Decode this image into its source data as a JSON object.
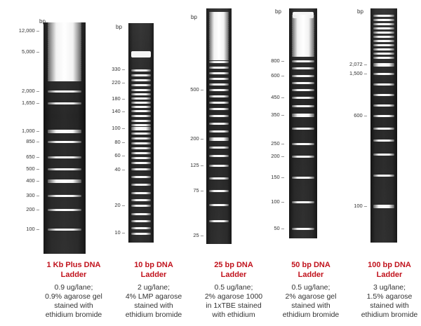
{
  "ladders": [
    {
      "bp_label": "bp",
      "title_lines": [
        "1 Kb Plus DNA",
        "Ladder"
      ],
      "desc_lines": [
        "0.9 ug/lane;",
        "0.9% agarose gel",
        "stained with",
        "ethidium bromide"
      ],
      "ticks": [
        "12,000",
        "5,000",
        "2,000",
        "1,650",
        "1,000",
        "850",
        "650",
        "500",
        "400",
        "300",
        "200",
        "100"
      ]
    },
    {
      "bp_label": "bp",
      "title_lines": [
        "10 bp DNA",
        "Ladder"
      ],
      "desc_lines": [
        "2 ug/lane;",
        "4% LMP agarose",
        "stained with",
        "ethidium bromide"
      ],
      "ticks": [
        "330",
        "220",
        "180",
        "140",
        "100",
        "80",
        "60",
        "40",
        "20",
        "10"
      ]
    },
    {
      "bp_label": "bp",
      "title_lines": [
        "25 bp DNA",
        "Ladder"
      ],
      "desc_lines": [
        "0.5 ug/lane;",
        "2% agarose 1000",
        "in 1xTBE stained",
        "with ethidium"
      ],
      "ticks": [
        "500",
        "200",
        "125",
        "75",
        "25"
      ]
    },
    {
      "bp_label": "bp",
      "title_lines": [
        "50 bp DNA",
        "Ladder"
      ],
      "desc_lines": [
        "0.5 ug/lane;",
        "2% agarose gel",
        "stained with",
        "ethidium bromide"
      ],
      "ticks": [
        "800",
        "600",
        "450",
        "350",
        "250",
        "200",
        "150",
        "100",
        "50"
      ]
    },
    {
      "bp_label": "bp",
      "title_lines": [
        "100 bp DNA",
        "Ladder"
      ],
      "desc_lines": [
        "3 ug/lane;",
        "1.5% agarose",
        "stained with",
        "ethidium bromide"
      ],
      "ticks": [
        "2,072",
        "1,500",
        "600",
        "100"
      ]
    }
  ]
}
